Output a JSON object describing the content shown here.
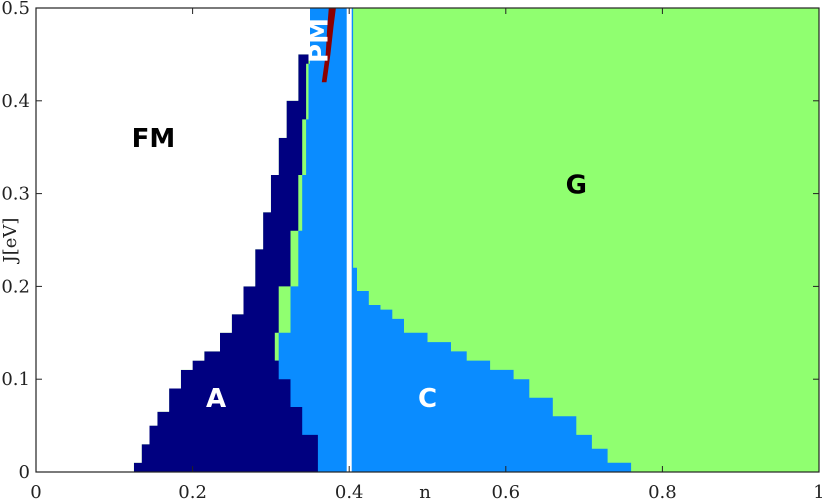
{
  "chart_data": {
    "type": "area",
    "xlabel": "n",
    "ylabel": "J[eV]",
    "xlim": [
      0,
      1
    ],
    "ylim": [
      0,
      0.5
    ],
    "x_ticks": [
      "0",
      "0.2",
      "0.4",
      "0.6",
      "0.8",
      "1"
    ],
    "y_ticks": [
      "0",
      "0.1",
      "0.2",
      "0.3",
      "0.4",
      "0.5"
    ],
    "grid": false,
    "regions": [
      {
        "name": "FM",
        "color": "#ffffff",
        "label_color": "#000000",
        "label_x": 0.15,
        "label_y": 0.35
      },
      {
        "name": "A",
        "color": "#000080",
        "label_color": "#ffffff",
        "label_x": 0.23,
        "label_y": 0.07
      },
      {
        "name": "PM",
        "color": "#8b0000",
        "label_color": "#ffffff",
        "label_x": 0.372,
        "label_y": 0.465
      },
      {
        "name": "C",
        "color": "#0a8cff",
        "label_color": "#ffffff",
        "label_x": 0.5,
        "label_y": 0.07
      },
      {
        "name": "G",
        "color": "#90ff70",
        "label_color": "#000000",
        "label_x": 0.69,
        "label_y": 0.3
      }
    ],
    "boundaries": {
      "fm_to_a": [
        [
          0.115,
          0.0
        ],
        [
          0.125,
          0.01
        ],
        [
          0.135,
          0.03
        ],
        [
          0.145,
          0.05
        ],
        [
          0.155,
          0.065
        ],
        [
          0.17,
          0.09
        ],
        [
          0.185,
          0.11
        ],
        [
          0.2,
          0.12
        ],
        [
          0.215,
          0.13
        ],
        [
          0.235,
          0.15
        ],
        [
          0.25,
          0.17
        ],
        [
          0.265,
          0.2
        ],
        [
          0.28,
          0.24
        ],
        [
          0.29,
          0.28
        ],
        [
          0.3,
          0.32
        ],
        [
          0.31,
          0.36
        ],
        [
          0.32,
          0.4
        ],
        [
          0.335,
          0.45
        ],
        [
          0.35,
          0.5
        ]
      ],
      "a_to_c": [
        [
          0.36,
          0.0
        ],
        [
          0.34,
          0.04
        ],
        [
          0.325,
          0.07
        ],
        [
          0.31,
          0.1
        ],
        [
          0.305,
          0.12
        ],
        [
          0.31,
          0.15
        ],
        [
          0.325,
          0.2
        ],
        [
          0.335,
          0.26
        ],
        [
          0.34,
          0.32
        ],
        [
          0.345,
          0.38
        ],
        [
          0.348,
          0.44
        ],
        [
          0.35,
          0.5
        ]
      ],
      "pm_left": [
        [
          0.365,
          0.42
        ],
        [
          0.37,
          0.45
        ],
        [
          0.372,
          0.48
        ],
        [
          0.374,
          0.5
        ]
      ],
      "pm_right": [
        [
          0.371,
          0.42
        ],
        [
          0.376,
          0.45
        ],
        [
          0.38,
          0.48
        ],
        [
          0.383,
          0.5
        ]
      ],
      "c_to_g": [
        [
          0.405,
          0.5
        ],
        [
          0.405,
          0.22
        ],
        [
          0.41,
          0.195
        ],
        [
          0.425,
          0.18
        ],
        [
          0.44,
          0.175
        ],
        [
          0.455,
          0.165
        ],
        [
          0.47,
          0.15
        ],
        [
          0.5,
          0.14
        ],
        [
          0.53,
          0.13
        ],
        [
          0.55,
          0.12
        ],
        [
          0.58,
          0.11
        ],
        [
          0.61,
          0.1
        ],
        [
          0.63,
          0.08
        ],
        [
          0.66,
          0.06
        ],
        [
          0.69,
          0.04
        ],
        [
          0.71,
          0.025
        ],
        [
          0.73,
          0.01
        ],
        [
          0.76,
          0.0
        ]
      ]
    },
    "vertical_line_x": 0.4
  }
}
